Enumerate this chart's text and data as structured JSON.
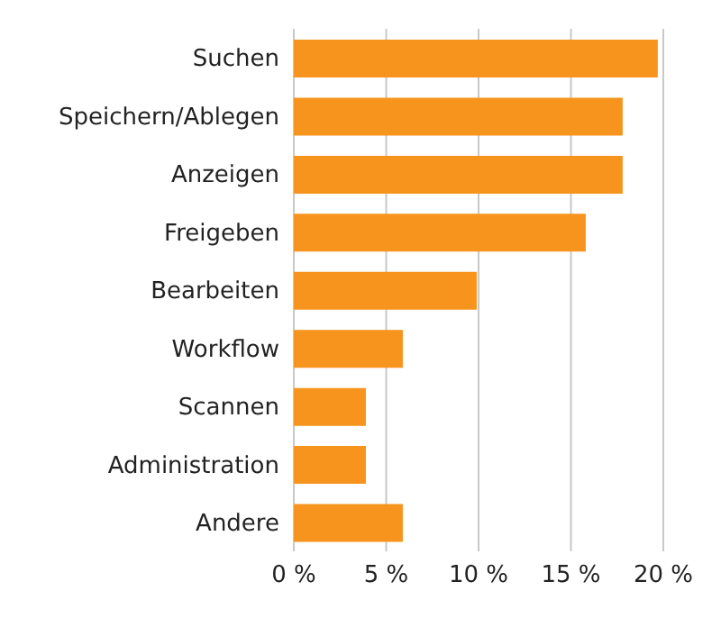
{
  "chart_data": {
    "type": "bar",
    "orientation": "horizontal",
    "categories": [
      "Suchen",
      "Speichern/Ablegen",
      "Anzeigen",
      "Freigeben",
      "Bearbeiten",
      "Workflow",
      "Scannen",
      "Administration",
      "Andere"
    ],
    "values": [
      19.7,
      17.8,
      17.8,
      15.8,
      9.9,
      5.9,
      3.9,
      3.9,
      5.9
    ],
    "color": "#f7941d",
    "xlim": [
      0,
      20
    ],
    "xticks": [
      {
        "value": 0,
        "label": "0 %"
      },
      {
        "value": 5,
        "label": "5 %"
      },
      {
        "value": 10,
        "label": "10 %"
      },
      {
        "value": 15,
        "label": "15 %"
      },
      {
        "value": 20,
        "label": "20 %"
      }
    ],
    "grid": "x"
  }
}
